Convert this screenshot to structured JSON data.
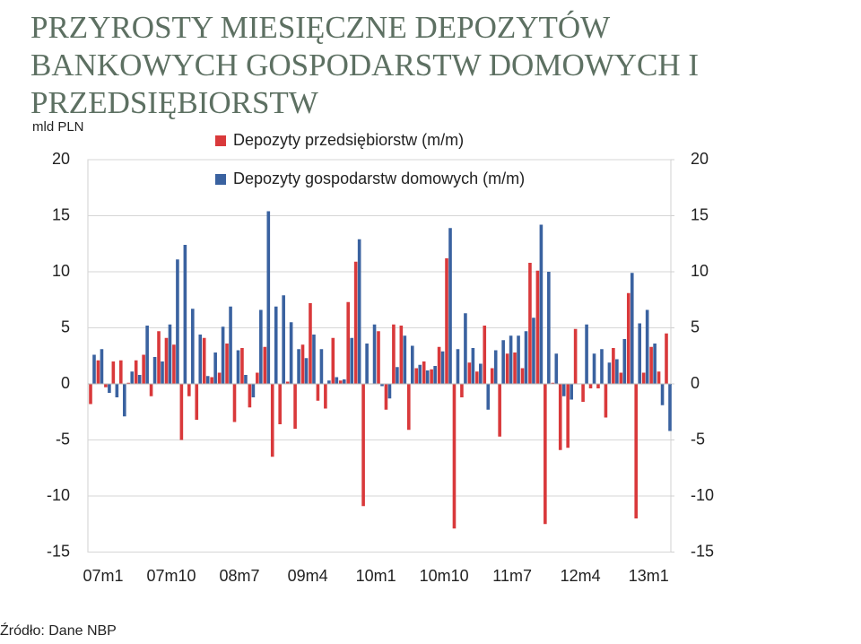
{
  "chart_data": {
    "type": "bar",
    "title": [
      "PRZYROSTY MIESIĘCZNE DEPOZYTÓW",
      "BANKOWYCH GOSPODARSTW DOMOWYCH I",
      "PRZEDSIĘBIORSTW"
    ],
    "y_axis_label": "mld PLN",
    "source": "Źródło: Dane NBP",
    "categories": [
      "07m1",
      null,
      null,
      null,
      null,
      null,
      null,
      null,
      null,
      "07m10",
      null,
      null,
      null,
      null,
      null,
      null,
      null,
      null,
      "08m7",
      null,
      null,
      null,
      null,
      null,
      null,
      null,
      null,
      "09m4",
      null,
      null,
      null,
      null,
      null,
      null,
      null,
      null,
      "10m1",
      null,
      null,
      null,
      null,
      null,
      null,
      null,
      null,
      "10m10",
      null,
      null,
      null,
      null,
      null,
      null,
      null,
      null,
      "11m7",
      null,
      null,
      null,
      null,
      null,
      null,
      null,
      null,
      "12m4",
      null,
      null,
      null,
      null,
      null,
      null,
      null,
      null,
      "13m1",
      null,
      null,
      null,
      null
    ],
    "series": [
      {
        "name": "Depozyty przedsiębiorstw (m/m)",
        "color": "#d9393b",
        "values": [
          -1.8,
          2.1,
          -0.3,
          2.0,
          2.1,
          0.1,
          2.1,
          2.6,
          -1.1,
          4.7,
          4.1,
          3.5,
          -5.0,
          -1.1,
          -3.2,
          4.1,
          0.6,
          1.0,
          3.6,
          -3.4,
          3.2,
          -2.1,
          1.0,
          3.3,
          -6.5,
          -3.6,
          0.2,
          -4.0,
          3.5,
          7.2,
          -1.5,
          -2.2,
          4.1,
          0.3,
          7.3,
          10.9,
          -10.9,
          0.0,
          4.7,
          -2.3,
          5.3,
          5.2,
          -4.1,
          1.4,
          2.0,
          1.3,
          3.3,
          11.2,
          -12.9,
          -1.2,
          1.9,
          1.1,
          5.2,
          1.4,
          -4.7,
          2.7,
          2.8,
          1.4,
          10.8,
          10.1,
          -12.5,
          0.1,
          -5.9,
          -5.7,
          4.9,
          -1.6,
          -0.4,
          -0.4,
          -3.0,
          3.2,
          1.0,
          8.1,
          -12.0,
          1.0,
          3.3,
          1.1,
          4.5
        ]
      },
      {
        "name": "Depozyty gospodarstw domowych (m/m)",
        "color": "#3a62a0",
        "values": [
          2.6,
          3.1,
          -0.8,
          -1.2,
          -2.9,
          1.1,
          0.8,
          5.2,
          2.4,
          2.0,
          5.3,
          11.1,
          12.4,
          6.7,
          4.4,
          0.7,
          2.8,
          5.1,
          6.9,
          3.0,
          0.8,
          -1.2,
          6.6,
          15.4,
          6.9,
          7.9,
          5.5,
          3.1,
          2.3,
          4.4,
          3.1,
          0.3,
          0.6,
          0.4,
          4.1,
          12.9,
          3.6,
          5.3,
          -0.2,
          -1.3,
          1.5,
          4.3,
          3.4,
          1.7,
          1.2,
          1.6,
          2.9,
          13.9,
          3.1,
          6.3,
          3.2,
          1.8,
          -2.3,
          3.0,
          3.9,
          4.3,
          4.3,
          4.7,
          5.9,
          14.2,
          10.0,
          2.7,
          -1.1,
          -1.4,
          0.0,
          5.3,
          2.7,
          3.1,
          1.9,
          2.2,
          4.0,
          9.9,
          5.4,
          6.6,
          3.6,
          -1.9,
          -4.2
        ]
      }
    ],
    "ylim": [
      -15,
      20
    ],
    "yticks": [
      -15,
      -10,
      -5,
      0,
      5,
      10,
      15,
      20
    ],
    "y2lim": [
      -15,
      20
    ],
    "y2ticks": [
      -15,
      -10,
      -5,
      0,
      5,
      10,
      15,
      20
    ],
    "grid": true,
    "legend": "top"
  }
}
